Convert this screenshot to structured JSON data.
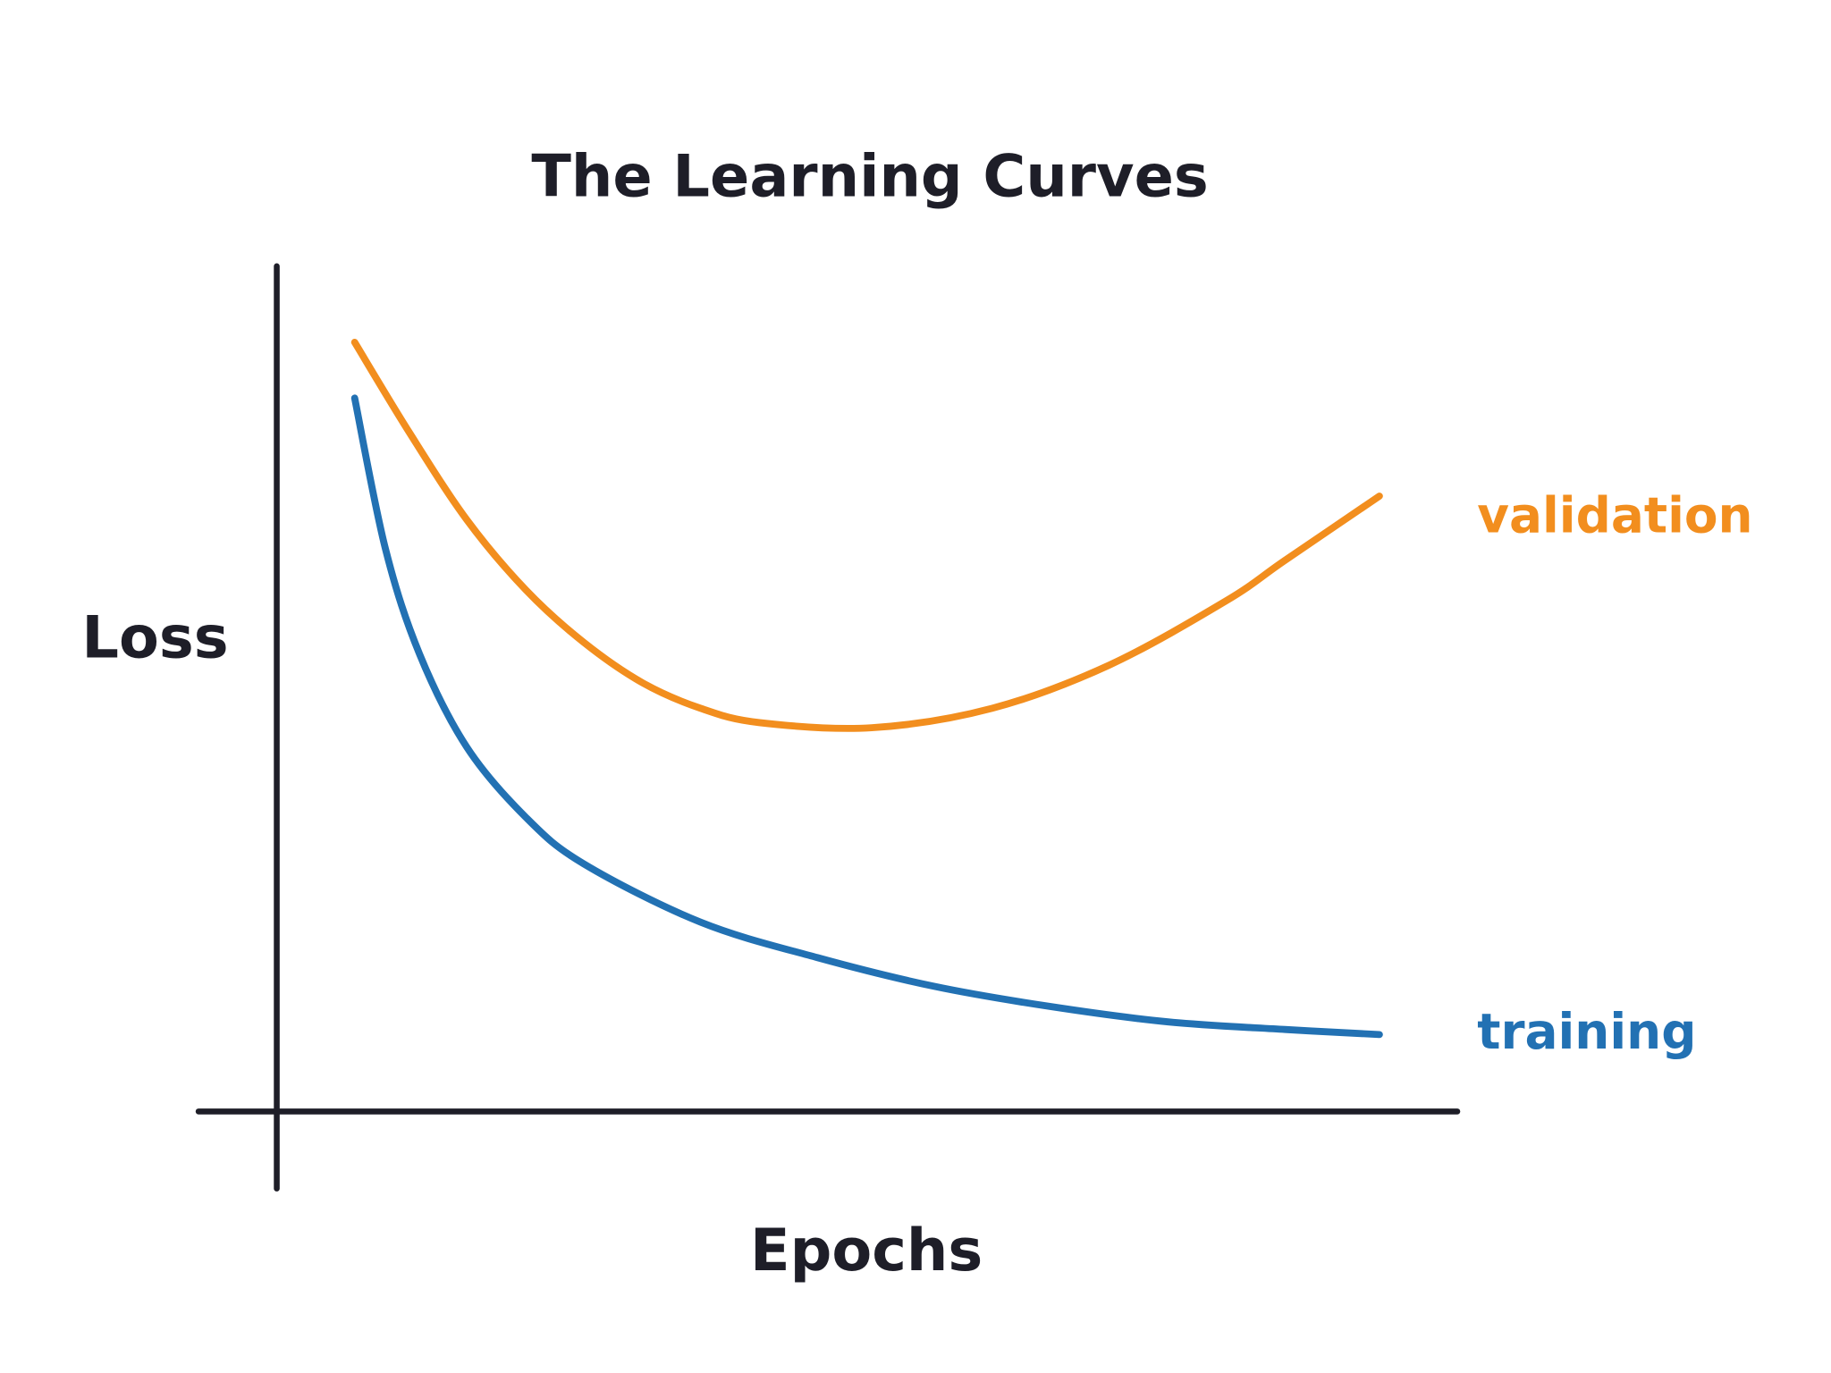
{
  "chart_data": {
    "type": "line",
    "title": "The Learning Curves",
    "xlabel": "Epochs",
    "ylabel": "Loss",
    "xlim": [
      0,
      10
    ],
    "ylim": [
      0,
      10
    ],
    "grid": false,
    "ticks": false,
    "legend": "inline-right",
    "axis_color": "#1e1e28",
    "series": [
      {
        "name": "validation",
        "color": "#F28E1E",
        "x": [
          0.66,
          1.12,
          1.61,
          2.11,
          2.6,
          3.1,
          3.59,
          4.09,
          5.04,
          6.06,
          7.05,
          8.04,
          8.54,
          9.34
        ],
        "y": [
          9.1,
          8.04,
          7.0,
          6.17,
          5.55,
          5.07,
          4.77,
          4.6,
          4.54,
          4.77,
          5.28,
          6.04,
          6.52,
          7.28
        ]
      },
      {
        "name": "training",
        "color": "#2271B3",
        "x": [
          0.66,
          0.92,
          1.21,
          1.61,
          2.11,
          2.6,
          3.59,
          4.58,
          5.57,
          6.56,
          7.55,
          8.54,
          9.34
        ],
        "y": [
          8.44,
          6.66,
          5.41,
          4.31,
          3.48,
          2.93,
          2.24,
          1.82,
          1.48,
          1.24,
          1.06,
          0.97,
          0.91
        ]
      }
    ]
  }
}
